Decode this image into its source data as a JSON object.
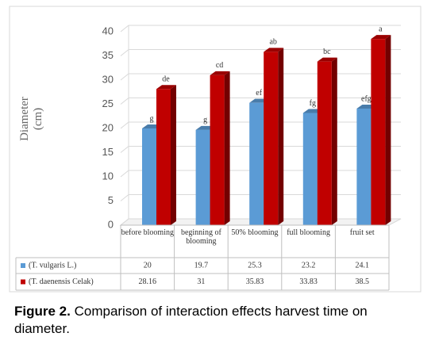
{
  "chart_data": {
    "type": "bar",
    "y_label_lines": [
      "Diameter",
      "(cm)"
    ],
    "categories": [
      "before blooming",
      "beginning of blooming",
      "50% blooming",
      "full blooming",
      "fruit set"
    ],
    "series": [
      {
        "name": "(T. vulgaris L.)",
        "color": "#5b9bd5",
        "values": [
          20,
          19.7,
          25.3,
          23.2,
          24.1
        ],
        "letters": [
          "g",
          "g",
          "ef",
          "fg",
          "efg"
        ]
      },
      {
        "name": "(T. daenensis  Celak)",
        "color": "#c00000",
        "values": [
          28.16,
          31,
          35.83,
          33.83,
          38.5
        ],
        "letters": [
          "de",
          "cd",
          "ab",
          "bc",
          "a"
        ]
      }
    ],
    "ylim": [
      0,
      40
    ],
    "yticks": [
      0,
      5,
      10,
      15,
      20,
      25,
      30,
      35,
      40
    ],
    "grid": true,
    "caption_label": "Figure 2.",
    "caption_text": "Comparison of interaction effects harvest time on diameter."
  }
}
